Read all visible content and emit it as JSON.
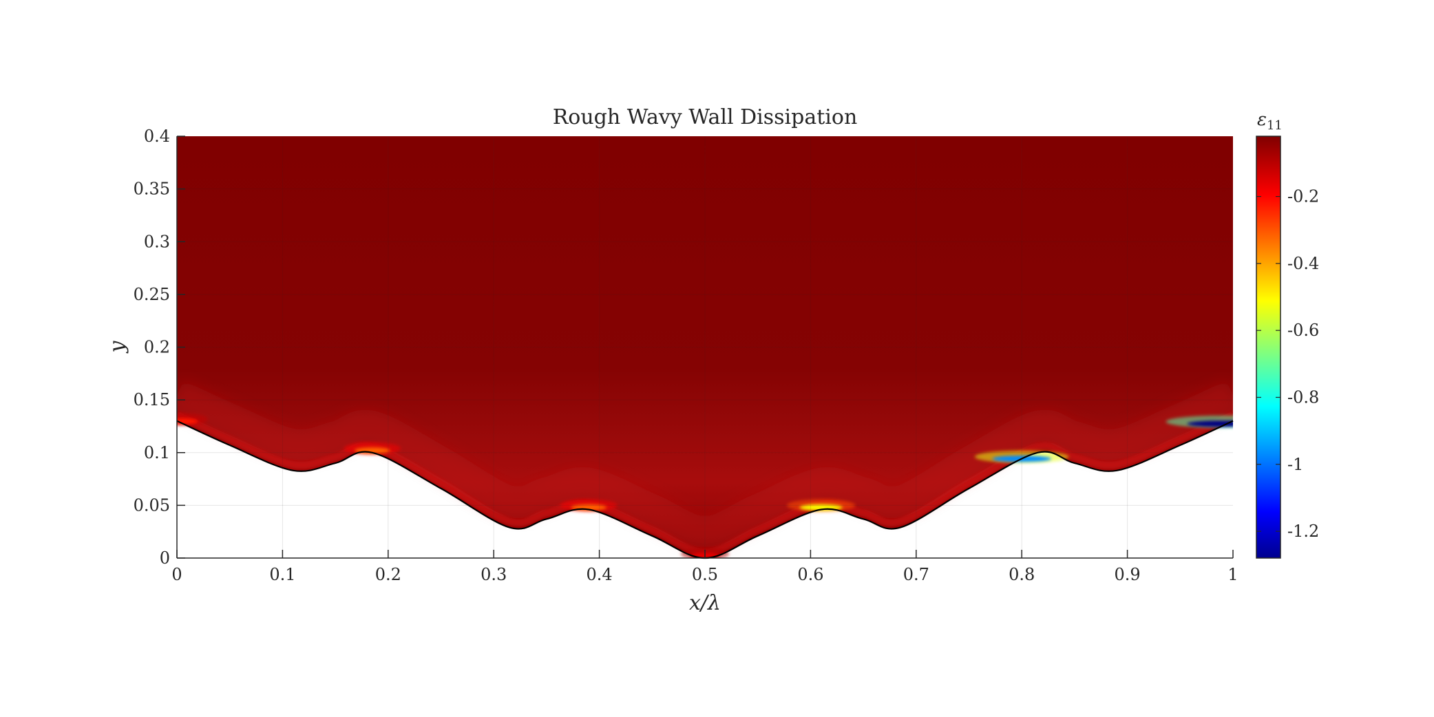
{
  "chart_data": {
    "type": "heatmap",
    "title": "Rough Wavy Wall Dissipation",
    "xlabel": "x/λ",
    "ylabel": "y",
    "xlim": [
      0,
      1
    ],
    "ylim": [
      0,
      0.4
    ],
    "x_ticks": [
      0,
      0.1,
      0.2,
      0.3,
      0.4,
      0.5,
      0.6,
      0.7,
      0.8,
      0.9,
      1
    ],
    "x_tick_labels": [
      "0",
      "0.1",
      "0.2",
      "0.3",
      "0.4",
      "0.5",
      "0.6",
      "0.7",
      "0.8",
      "0.9",
      "1"
    ],
    "y_ticks": [
      0,
      0.05,
      0.1,
      0.15,
      0.2,
      0.25,
      0.3,
      0.35,
      0.4
    ],
    "y_tick_labels": [
      "0",
      "0.05",
      "0.1",
      "0.15",
      "0.2",
      "0.25",
      "0.3",
      "0.35",
      "0.4"
    ],
    "grid": true,
    "colorbar": {
      "label": "ε11",
      "label_main": "ε",
      "label_sub": "11",
      "colormap": "jet",
      "range": [
        -1.28,
        -0.02
      ],
      "ticks": [
        -0.2,
        -0.4,
        -0.6,
        -0.8,
        -1,
        -1.2
      ],
      "tick_labels": [
        "-0.2",
        "-0.4",
        "-0.6",
        "-0.8",
        "-1",
        "-1.2"
      ]
    },
    "background_value": -0.03,
    "wall_profile": {
      "x": [
        0,
        0.05,
        0.11,
        0.15,
        0.185,
        0.25,
        0.315,
        0.35,
        0.39,
        0.45,
        0.5,
        0.55,
        0.61,
        0.65,
        0.685,
        0.75,
        0.815,
        0.85,
        0.89,
        0.95,
        1
      ],
      "y": [
        0.13,
        0.107,
        0.083,
        0.09,
        0.1,
        0.066,
        0.029,
        0.037,
        0.046,
        0.021,
        0,
        0.021,
        0.046,
        0.037,
        0.029,
        0.066,
        0.1,
        0.09,
        0.083,
        0.107,
        0.13
      ]
    },
    "near_wall_extremes": [
      {
        "x": 0.005,
        "value": -0.2
      },
      {
        "x": 0.185,
        "value": -0.3
      },
      {
        "x": 0.39,
        "value": -0.3
      },
      {
        "x": 0.5,
        "value": -0.15
      },
      {
        "x": 0.61,
        "value": -0.5
      },
      {
        "x": 0.8,
        "value": -0.95
      },
      {
        "x": 0.99,
        "value": -1.28
      }
    ]
  }
}
